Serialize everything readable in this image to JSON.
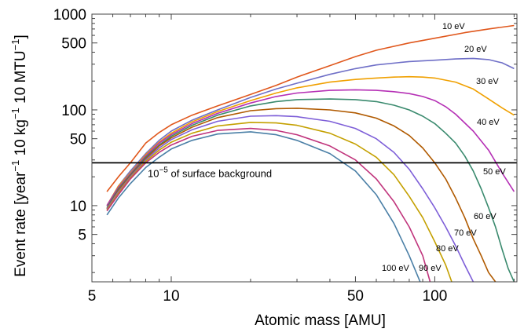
{
  "chart_data": {
    "type": "line",
    "title": "",
    "xlabel": "Atomic mass [AMU]",
    "ylabel": {
      "parts": [
        "Event rate [year",
        "−1",
        " 10 kg",
        "−1",
        " 10 MTU",
        "−1",
        "]"
      ]
    },
    "x_scale": "log",
    "y_scale": "log",
    "xlim": [
      5,
      205
    ],
    "ylim": [
      1.6,
      1000
    ],
    "x_ticks": [
      5,
      10,
      50,
      100
    ],
    "x_tick_labels": [
      "5",
      "10",
      "50",
      "100"
    ],
    "y_ticks": [
      5,
      10,
      50,
      100,
      500,
      1000
    ],
    "y_tick_labels": [
      "5",
      "10",
      "50",
      "100",
      "500",
      "1000"
    ],
    "grid": false,
    "reference_line": {
      "y": 28,
      "color": "#000000",
      "label_parts": [
        "10",
        "−5",
        " of surface background"
      ]
    },
    "series": [
      {
        "name": "10 eV",
        "color": "#e0571c",
        "x": [
          5.7,
          6.3,
          7,
          8,
          9,
          10,
          12,
          15,
          20,
          25,
          30,
          40,
          50,
          60,
          80,
          100,
          130,
          160,
          200
        ],
        "y": [
          14,
          20,
          28,
          45,
          58,
          70,
          88,
          110,
          145,
          180,
          220,
          290,
          360,
          420,
          500,
          560,
          640,
          700,
          760
        ]
      },
      {
        "name": "20 eV",
        "color": "#6f6fc7",
        "x": [
          5.7,
          6.3,
          7,
          8,
          9,
          10,
          12,
          15,
          20,
          25,
          30,
          40,
          50,
          60,
          80,
          100,
          120,
          140,
          160,
          180,
          200
        ],
        "y": [
          10,
          16,
          23,
          35,
          48,
          60,
          78,
          100,
          135,
          165,
          190,
          235,
          270,
          295,
          320,
          330,
          340,
          345,
          335,
          310,
          270
        ]
      },
      {
        "name": "30 eV",
        "color": "#f0a000",
        "x": [
          5.7,
          6.3,
          7,
          8,
          9,
          10,
          12,
          15,
          20,
          25,
          30,
          40,
          50,
          60,
          70,
          80,
          90,
          100,
          120,
          140,
          160,
          180,
          200
        ],
        "y": [
          10,
          16,
          22,
          34,
          46,
          57,
          75,
          96,
          125,
          150,
          170,
          195,
          208,
          215,
          220,
          222,
          220,
          215,
          195,
          165,
          130,
          105,
          88
        ]
      },
      {
        "name": "40 eV",
        "color": "#b52fb5",
        "x": [
          5.7,
          6.3,
          7,
          8,
          9,
          10,
          12,
          15,
          20,
          25,
          30,
          40,
          50,
          60,
          70,
          80,
          90,
          100,
          110,
          120,
          140,
          160,
          180,
          200
        ],
        "y": [
          10,
          15.5,
          21.5,
          33,
          45,
          55,
          72,
          92,
          118,
          138,
          150,
          160,
          162,
          160,
          155,
          148,
          138,
          125,
          108,
          90,
          60,
          38,
          22,
          14
        ]
      },
      {
        "name": "50 eV",
        "color": "#3a8a6e",
        "x": [
          5.7,
          6.3,
          7,
          8,
          9,
          10,
          12,
          15,
          20,
          25,
          30,
          40,
          50,
          60,
          70,
          80,
          90,
          100,
          110,
          120,
          130,
          140,
          150,
          160,
          170,
          180,
          190,
          200
        ],
        "y": [
          9.5,
          15,
          21,
          32,
          43,
          53,
          69,
          88,
          110,
          122,
          128,
          130,
          128,
          122,
          112,
          100,
          86,
          72,
          57,
          45,
          33,
          23,
          15,
          9.5,
          6,
          3.5,
          2.2,
          1.6
        ]
      },
      {
        "name": "60 eV",
        "color": "#b05a00",
        "x": [
          5.7,
          6.3,
          7,
          8,
          9,
          10,
          12,
          15,
          20,
          25,
          30,
          40,
          50,
          60,
          70,
          80,
          90,
          100,
          110,
          120,
          130,
          140,
          150,
          160,
          170
        ],
        "y": [
          9.3,
          14.5,
          20.5,
          31,
          42,
          51,
          66,
          83,
          98,
          103,
          104,
          100,
          93,
          82,
          68,
          54,
          40,
          28,
          19,
          12,
          7.5,
          4.5,
          3,
          2,
          1.6
        ]
      },
      {
        "name": "70 eV",
        "color": "#7e5fd8",
        "x": [
          5.7,
          6.3,
          7,
          8,
          9,
          10,
          12,
          15,
          20,
          25,
          30,
          40,
          50,
          60,
          70,
          80,
          90,
          100,
          110,
          120,
          130,
          140
        ],
        "y": [
          9.2,
          14,
          20,
          30,
          40,
          49,
          62,
          76,
          86,
          87,
          85,
          76,
          64,
          50,
          36,
          24,
          15,
          9.5,
          6,
          3.8,
          2.4,
          1.6
        ]
      },
      {
        "name": "80 eV",
        "color": "#c4a000",
        "x": [
          5.7,
          6.3,
          7,
          8,
          9,
          10,
          12,
          15,
          20,
          25,
          30,
          40,
          50,
          60,
          70,
          80,
          90,
          100,
          110,
          116
        ],
        "y": [
          9,
          13.5,
          19.5,
          29,
          38,
          46,
          57,
          68,
          74,
          73,
          69,
          57,
          44,
          32,
          21,
          12.5,
          7.5,
          4.2,
          2.4,
          1.6
        ]
      },
      {
        "name": "90 eV",
        "color": "#c0347c",
        "x": [
          5.7,
          6.3,
          7,
          8,
          9,
          10,
          12,
          15,
          20,
          25,
          30,
          40,
          50,
          60,
          70,
          80,
          90,
          96
        ],
        "y": [
          8.8,
          13,
          19,
          28,
          36,
          43,
          53,
          61,
          64,
          61,
          55,
          42,
          30,
          19,
          11,
          6,
          3,
          1.6
        ]
      },
      {
        "name": "100 eV",
        "color": "#4a7fa6",
        "x": [
          5.7,
          6.3,
          7,
          8,
          9,
          10,
          12,
          15,
          20,
          25,
          30,
          40,
          50,
          60,
          70,
          80,
          88
        ],
        "y": [
          8,
          12,
          17,
          25,
          32,
          39,
          48,
          56,
          59,
          55,
          48,
          35,
          23,
          13,
          6.5,
          3,
          1.6
        ]
      }
    ]
  }
}
